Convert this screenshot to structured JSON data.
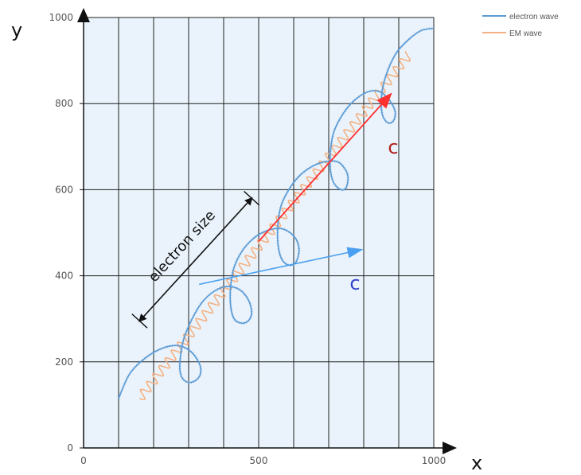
{
  "chart_data": {
    "type": "line",
    "xlabel": "x",
    "ylabel": "y",
    "xlim": [
      0,
      1000
    ],
    "ylim": [
      0,
      1000
    ],
    "x_ticks": [
      "0",
      "500",
      "1000"
    ],
    "y_ticks": [
      "0",
      "200",
      "400",
      "600",
      "800",
      "1000"
    ],
    "grid": true,
    "legend_position": "top-right",
    "colors": {
      "plot_background": "#eaf3fb",
      "grid": "#1f1f1f",
      "electron_wave": "#5b9bd5",
      "em_wave": "#f4b183",
      "red_arrow": "#ff3030",
      "blue_arrow": "#4a9ff0",
      "red_label": "#b22222",
      "blue_label": "#3344cc"
    },
    "series": [
      {
        "name": "electron wave",
        "description_points_xy": [
          [
            100,
            115
          ],
          [
            130,
            170
          ],
          [
            170,
            205
          ],
          [
            220,
            230
          ],
          [
            265,
            238
          ],
          [
            300,
            228
          ],
          [
            325,
            205
          ],
          [
            335,
            180
          ],
          [
            325,
            160
          ],
          [
            300,
            152
          ],
          [
            280,
            165
          ],
          [
            275,
            195
          ],
          [
            285,
            250
          ],
          [
            310,
            300
          ],
          [
            340,
            340
          ],
          [
            375,
            365
          ],
          [
            410,
            375
          ],
          [
            445,
            368
          ],
          [
            470,
            345
          ],
          [
            480,
            315
          ],
          [
            470,
            295
          ],
          [
            450,
            290
          ],
          [
            430,
            300
          ],
          [
            420,
            330
          ],
          [
            420,
            375
          ],
          [
            430,
            420
          ],
          [
            455,
            460
          ],
          [
            490,
            490
          ],
          [
            525,
            505
          ],
          [
            560,
            510
          ],
          [
            590,
            500
          ],
          [
            610,
            480
          ],
          [
            615,
            455
          ],
          [
            605,
            430
          ],
          [
            585,
            425
          ],
          [
            565,
            440
          ],
          [
            555,
            475
          ],
          [
            555,
            520
          ],
          [
            565,
            565
          ],
          [
            590,
            605
          ],
          [
            620,
            635
          ],
          [
            655,
            655
          ],
          [
            690,
            665
          ],
          [
            725,
            665
          ],
          [
            745,
            650
          ],
          [
            755,
            630
          ],
          [
            750,
            605
          ],
          [
            735,
            600
          ],
          [
            715,
            615
          ],
          [
            705,
            645
          ],
          [
            705,
            690
          ],
          [
            715,
            735
          ],
          [
            740,
            775
          ],
          [
            770,
            805
          ],
          [
            805,
            825
          ],
          [
            835,
            830
          ],
          [
            860,
            820
          ],
          [
            880,
            800
          ],
          [
            890,
            780
          ],
          [
            885,
            760
          ],
          [
            870,
            755
          ],
          [
            855,
            770
          ],
          [
            850,
            800
          ],
          [
            855,
            840
          ],
          [
            870,
            880
          ],
          [
            895,
            920
          ],
          [
            930,
            950
          ],
          [
            965,
            970
          ],
          [
            1000,
            975
          ]
        ]
      },
      {
        "name": "EM wave",
        "start": [
          160,
          115
        ],
        "end": [
          930,
          915
        ]
      }
    ],
    "annotations": [
      {
        "text": "electron size",
        "from": [
          160,
          295
        ],
        "to": [
          480,
          580
        ]
      },
      {
        "text": "c",
        "arrow_from": [
          330,
          380
        ],
        "arrow_to": [
          790,
          460
        ],
        "color": "blue"
      },
      {
        "text": "c",
        "arrow_from": [
          500,
          480
        ],
        "arrow_to": [
          875,
          820
        ],
        "color": "red"
      }
    ]
  }
}
